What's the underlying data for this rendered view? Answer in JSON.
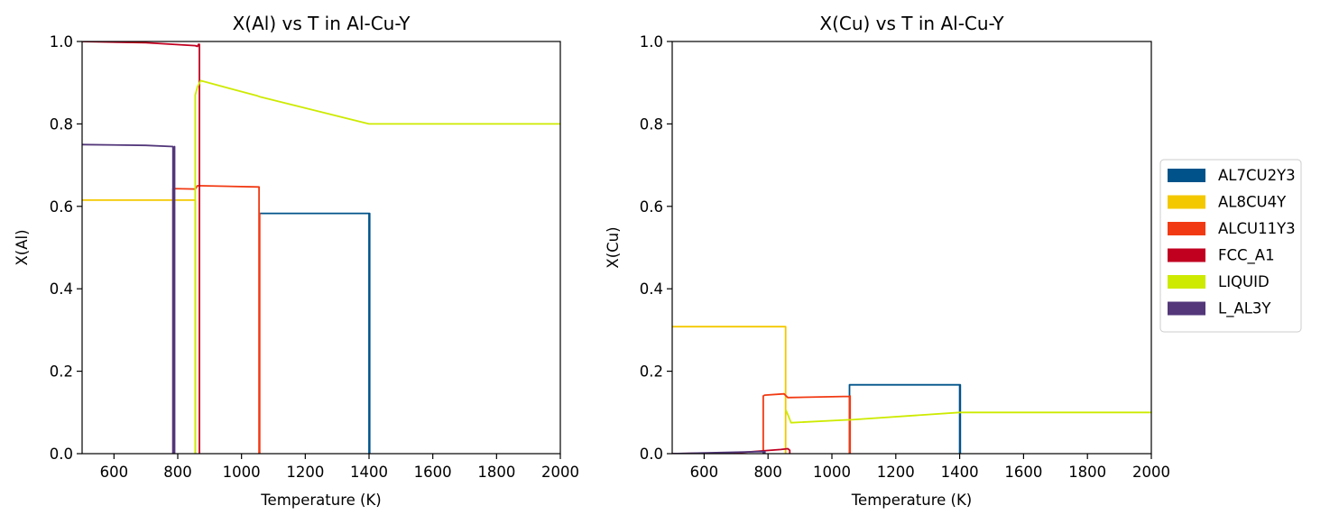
{
  "chart_data": [
    {
      "type": "line",
      "title": "X(Al) vs T in Al-Cu-Y",
      "xlabel": "Temperature (K)",
      "ylabel": "X(Al)",
      "xlim": [
        500,
        2000
      ],
      "ylim": [
        0,
        1
      ],
      "xticks": [
        600,
        800,
        1000,
        1200,
        1400,
        1600,
        1800,
        2000
      ],
      "xtick_labels": [
        "600",
        "800",
        "1000",
        "1200",
        "1400",
        "1600",
        "1800",
        "2000"
      ],
      "yticks": [
        0,
        0.2,
        0.4,
        0.6,
        0.8,
        1.0
      ],
      "ytick_labels": [
        "0.0",
        "0.2",
        "0.4",
        "0.6",
        "0.8",
        "1.0"
      ],
      "grid": false,
      "series": [
        {
          "key": "AL7CU2Y3",
          "color": "#00538a",
          "points": [
            [
              1055,
              0.583
            ],
            [
              1400,
              0.583
            ],
            [
              1400,
              0
            ],
            [
              1402,
              0.583
            ],
            [
              1402,
              0
            ]
          ]
        },
        {
          "key": "AL8CU4Y",
          "color": "#f4c800",
          "points": [
            [
              500,
              0.615
            ],
            [
              855,
              0.615
            ],
            [
              855,
              0
            ]
          ]
        },
        {
          "key": "ALCU11Y3",
          "color": "#f13a13",
          "points": [
            [
              785,
              0
            ],
            [
              785,
              0.643
            ],
            [
              855,
              0.642
            ],
            [
              862,
              0.65
            ],
            [
              1055,
              0.647
            ],
            [
              1055,
              0
            ],
            [
              1057,
              0.583
            ],
            [
              1057,
              0
            ]
          ]
        },
        {
          "key": "FCC_A1",
          "color": "#c10020",
          "points": [
            [
              500,
              1.0
            ],
            [
              700,
              0.997
            ],
            [
              855,
              0.99
            ],
            [
              862,
              0.988
            ],
            [
              865,
              0.993
            ],
            [
              868,
              0.993
            ],
            [
              868,
              0
            ]
          ]
        },
        {
          "key": "LIQUID",
          "color": "#cdea00",
          "points": [
            [
              855,
              0
            ],
            [
              855,
              0.87
            ],
            [
              862,
              0.89
            ],
            [
              872,
              0.905
            ],
            [
              1050,
              0.868
            ],
            [
              1057,
              0.866
            ],
            [
              1400,
              0.8
            ],
            [
              2000,
              0.8
            ]
          ]
        },
        {
          "key": "L_AL3Y",
          "color": "#53377a",
          "points": [
            [
              500,
              0.75
            ],
            [
              700,
              0.748
            ],
            [
              785,
              0.745
            ],
            [
              785,
              0
            ],
            [
              790,
              0.745
            ],
            [
              790,
              0
            ]
          ]
        }
      ]
    },
    {
      "type": "line",
      "title": "X(Cu) vs T in Al-Cu-Y",
      "xlabel": "Temperature (K)",
      "ylabel": "X(Cu)",
      "xlim": [
        500,
        2000
      ],
      "ylim": [
        0,
        1
      ],
      "xticks": [
        600,
        800,
        1000,
        1200,
        1400,
        1600,
        1800,
        2000
      ],
      "xtick_labels": [
        "600",
        "800",
        "1000",
        "1200",
        "1400",
        "1600",
        "1800",
        "2000"
      ],
      "yticks": [
        0,
        0.2,
        0.4,
        0.6,
        0.8,
        1.0
      ],
      "ytick_labels": [
        "0.0",
        "0.2",
        "0.4",
        "0.6",
        "0.8",
        "1.0"
      ],
      "grid": false,
      "series": [
        {
          "key": "AL7CU2Y3",
          "color": "#00538a",
          "points": [
            [
              1055,
              0
            ],
            [
              1055,
              0.167
            ],
            [
              1400,
              0.167
            ],
            [
              1400,
              0
            ],
            [
              1402,
              0.167
            ],
            [
              1402,
              0
            ]
          ]
        },
        {
          "key": "AL8CU4Y",
          "color": "#f4c800",
          "points": [
            [
              500,
              0.308
            ],
            [
              855,
              0.308
            ],
            [
              855,
              0
            ]
          ]
        },
        {
          "key": "ALCU11Y3",
          "color": "#f13a13",
          "points": [
            [
              785,
              0
            ],
            [
              785,
              0.14
            ],
            [
              790,
              0.142
            ],
            [
              850,
              0.145
            ],
            [
              862,
              0.136
            ],
            [
              1055,
              0.139
            ],
            [
              1055,
              0
            ],
            [
              1057,
              0.14
            ],
            [
              1057,
              0
            ]
          ]
        },
        {
          "key": "FCC_A1",
          "color": "#c10020",
          "points": [
            [
              500,
              0
            ],
            [
              700,
              0.002
            ],
            [
              840,
              0.01
            ],
            [
              862,
              0.012
            ],
            [
              868,
              0.008
            ],
            [
              868,
              0
            ]
          ]
        },
        {
          "key": "LIQUID",
          "color": "#cdea00",
          "points": [
            [
              855,
              0.107
            ],
            [
              862,
              0.095
            ],
            [
              872,
              0.075
            ],
            [
              1050,
              0.082
            ],
            [
              1057,
              0.082
            ],
            [
              1400,
              0.1
            ],
            [
              2000,
              0.1
            ]
          ]
        },
        {
          "key": "L_AL3Y",
          "color": "#53377a",
          "points": [
            [
              500,
              0
            ],
            [
              785,
              0.005
            ],
            [
              785,
              0
            ],
            [
              790,
              0.005
            ],
            [
              790,
              0
            ]
          ]
        }
      ]
    }
  ],
  "legend": {
    "placement": "right of second chart",
    "entries": [
      {
        "label": "AL7CU2Y3",
        "color": "#00538a"
      },
      {
        "label": "AL8CU4Y",
        "color": "#f4c800"
      },
      {
        "label": "ALCU11Y3",
        "color": "#f13a13"
      },
      {
        "label": "FCC_A1",
        "color": "#c10020"
      },
      {
        "label": "LIQUID",
        "color": "#cdea00"
      },
      {
        "label": "L_AL3Y",
        "color": "#53377a"
      }
    ]
  }
}
